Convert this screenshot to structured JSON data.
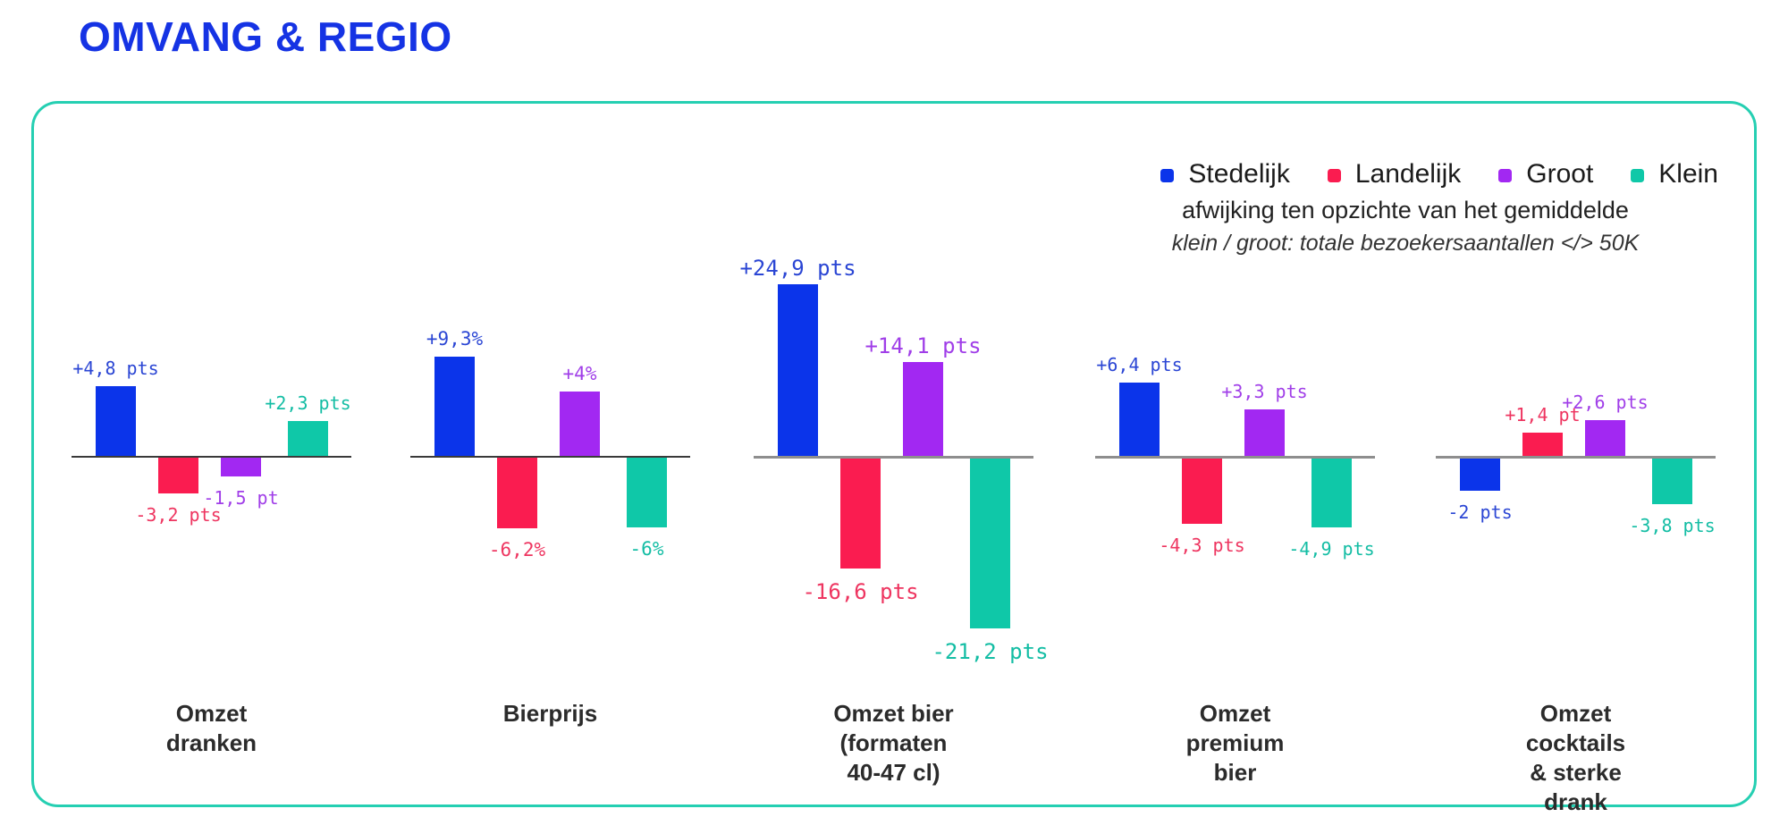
{
  "page": {
    "title": "OMVANG & REGIO"
  },
  "colors": {
    "title": "#1533e4",
    "card_border": "#25cfb2",
    "stedelijk": "#0b34ea",
    "landelijk": "#fa1c50",
    "groot": "#a228f2",
    "klein": "#0fc8a8"
  },
  "legend": {
    "items": [
      {
        "label": "Stedelijk",
        "color": "#0b34ea"
      },
      {
        "label": "Landelijk",
        "color": "#fa1c50"
      },
      {
        "label": "Groot",
        "color": "#a228f2"
      },
      {
        "label": "Klein",
        "color": "#0fc8a8"
      }
    ],
    "subtitle": "afwijking ten opzichte van het gemiddelde",
    "note": "klein / groot: totale bezoekersaantallen </> 50K"
  },
  "chart_data": {
    "type": "bar",
    "title": "OMVANG & REGIO",
    "legend_position": "top-right",
    "grid": false,
    "series_names": [
      "Stedelijk",
      "Landelijk",
      "Groot",
      "Klein"
    ],
    "categories": [
      "Omzet dranken",
      "Bierprijs",
      "Omzet bier\n(formaten 40-47 cl)",
      "Omzet\npremium bier",
      "Omzet cocktails\n& sterke drank"
    ],
    "series": [
      {
        "name": "Stedelijk",
        "color": "#0b34ea",
        "values": [
          4.8,
          9.3,
          24.9,
          6.4,
          -2
        ],
        "labels": [
          "+4,8 pts",
          "+9,3%",
          "+24,9 pts",
          "+6,4 pts",
          "-2 pts"
        ]
      },
      {
        "name": "Landelijk",
        "color": "#fa1c50",
        "values": [
          -3.2,
          -6.2,
          -16.6,
          -4.3,
          1.4
        ],
        "labels": [
          "-3,2 pts",
          "-6,2%",
          "-16,6 pts",
          "-4,3 pts",
          "+1,4 pt"
        ]
      },
      {
        "name": "Groot",
        "color": "#a228f2",
        "values": [
          -1.5,
          4,
          14.1,
          3.3,
          2.6
        ],
        "labels": [
          "-1,5 pt",
          "+4%",
          "+14,1 pts",
          "+3,3 pts",
          "+2,6 pts"
        ]
      },
      {
        "name": "Klein",
        "color": "#0fc8a8",
        "values": [
          2.3,
          -6,
          -21.2,
          -4.9,
          -3.8
        ],
        "labels": [
          "+2,3 pts",
          "-6%",
          "-21,2 pts",
          "-4,9 pts",
          "-3,8 pts"
        ]
      }
    ]
  }
}
